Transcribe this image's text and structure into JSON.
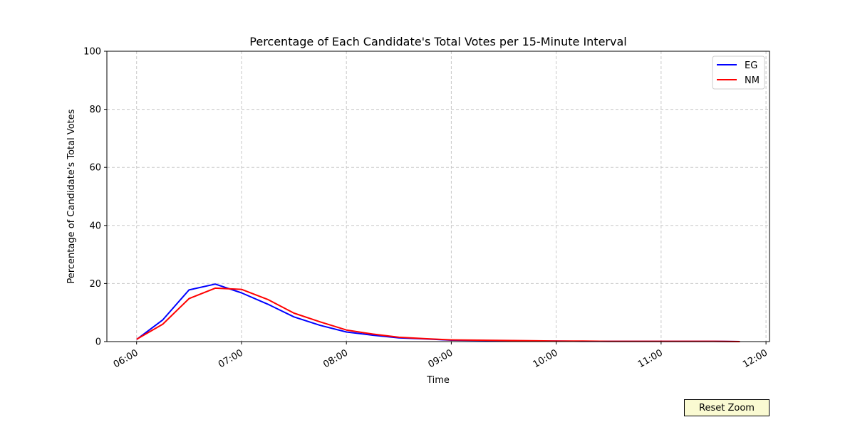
{
  "chart_data": {
    "type": "line",
    "title": "Percentage of Each Candidate's Total Votes per 15-Minute Interval",
    "xlabel": "Time",
    "ylabel": "Percentage of Candidate's Total Votes",
    "ylim": [
      0,
      100
    ],
    "yticks": [
      0,
      20,
      40,
      60,
      80,
      100
    ],
    "xticks": [
      "06:00",
      "07:00",
      "08:00",
      "09:00",
      "10:00",
      "11:00",
      "12:00"
    ],
    "xlim": [
      "05:43",
      "12:02"
    ],
    "x": [
      "06:00",
      "06:15",
      "06:30",
      "06:45",
      "07:00",
      "07:15",
      "07:30",
      "07:45",
      "08:00",
      "08:15",
      "08:30",
      "08:45",
      "09:00",
      "09:15",
      "09:30",
      "09:45",
      "10:00",
      "10:15",
      "10:30",
      "10:45",
      "11:00",
      "11:15",
      "11:30",
      "11:45"
    ],
    "grid": true,
    "legend_position": "top-right",
    "series": [
      {
        "name": "EG",
        "color": "#0000ff",
        "values": [
          0.7,
          7.5,
          17.8,
          19.8,
          16.8,
          12.9,
          8.5,
          5.6,
          3.3,
          2.2,
          1.3,
          0.9,
          0.5,
          0.4,
          0.3,
          0.2,
          0.2,
          0.1,
          0.1,
          0.1,
          0.1,
          0.1,
          0.1,
          0.0
        ]
      },
      {
        "name": "NM",
        "color": "#ff0000",
        "values": [
          0.8,
          6.0,
          14.8,
          18.4,
          18.0,
          14.5,
          9.8,
          6.8,
          4.0,
          2.6,
          1.5,
          1.0,
          0.6,
          0.5,
          0.4,
          0.3,
          0.2,
          0.2,
          0.1,
          0.1,
          0.1,
          0.1,
          0.1,
          0.0
        ]
      }
    ]
  },
  "controls": {
    "reset_zoom_label": "Reset Zoom"
  }
}
